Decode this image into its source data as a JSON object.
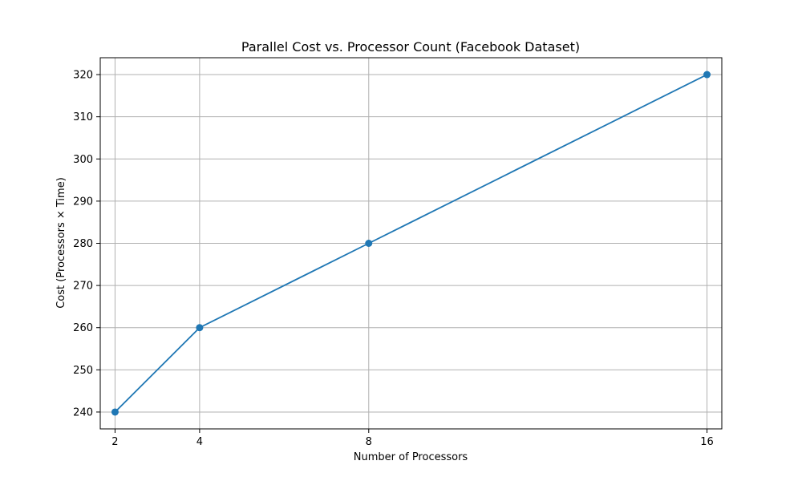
{
  "chart_data": {
    "type": "line",
    "title": "Parallel Cost vs. Processor Count (Facebook Dataset)",
    "xlabel": "Number of Processors",
    "ylabel": "Cost (Processors × Time)",
    "x": [
      2,
      4,
      8,
      16
    ],
    "xticks": [
      "2",
      "4",
      "8",
      "16"
    ],
    "xlim": [
      1.65,
      16.35
    ],
    "ylim": [
      236,
      324
    ],
    "yticks": [
      240,
      250,
      260,
      270,
      280,
      290,
      300,
      310,
      320
    ],
    "grid": true,
    "series": [
      {
        "values": [
          240,
          260,
          280,
          320
        ],
        "color": "#1f77b4",
        "marker": "circle"
      }
    ]
  }
}
